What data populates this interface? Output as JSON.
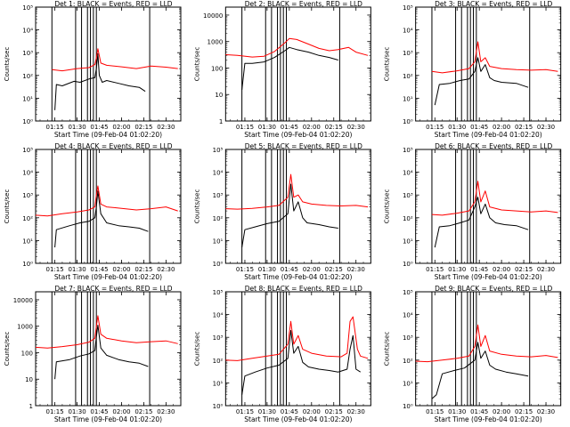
{
  "panel_defaults": {
    "xlabel": "Start Time (09-Feb-04 01:02:20)",
    "ylabel": "Counts/sec",
    "xticks": [
      "01:15",
      "01:30",
      "01:45",
      "02:00",
      "02:15",
      "02:30"
    ],
    "colors": {
      "events": "#000000",
      "lld": "#ff0000",
      "axes": "#000000"
    }
  },
  "chart_data": [
    {
      "type": "line",
      "title": "Det 1: BLACK = Events, RED = LLD",
      "xlabel": "Start Time (09-Feb-04 01:02:20)",
      "ylabel": "Counts/sec",
      "yscale": "log",
      "ylim": [
        1,
        100000
      ],
      "yticks": [
        "10⁰",
        "10¹",
        "10²",
        "10³",
        "10⁴",
        "10⁵"
      ],
      "xlim": [
        "01:02",
        "02:40"
      ],
      "xticks": [
        "01:15",
        "01:30",
        "01:45",
        "02:00",
        "02:15",
        "02:30"
      ],
      "vlines": [
        "01:13",
        "01:29",
        "01:33",
        "01:37",
        "01:39",
        "01:41",
        "01:43",
        "02:19"
      ],
      "series": [
        {
          "id": "events",
          "color": "#000000",
          "x": [
            "01:15",
            "01:16",
            "01:20",
            "01:28",
            "01:32",
            "01:38",
            "01:42",
            "01:43",
            "01:44",
            "01:45",
            "01:47",
            "01:50",
            "01:58",
            "02:05",
            "02:12",
            "02:16"
          ],
          "y": [
            3,
            40,
            35,
            55,
            50,
            70,
            80,
            200,
            900,
            100,
            50,
            60,
            45,
            35,
            30,
            20
          ]
        },
        {
          "id": "lld",
          "color": "#ff0000",
          "x": [
            "01:13",
            "01:20",
            "01:30",
            "01:38",
            "01:42",
            "01:43",
            "01:44",
            "01:46",
            "01:50",
            "02:00",
            "02:10",
            "02:20",
            "02:30",
            "02:38"
          ],
          "y": [
            180,
            160,
            200,
            220,
            300,
            600,
            1500,
            350,
            280,
            240,
            200,
            260,
            230,
            200
          ]
        }
      ]
    },
    {
      "type": "line",
      "title": "Det 2: BLACK = Events, RED = LLD",
      "xlabel": "Start Time (09-Feb-04 01:02:20)",
      "ylabel": "Counts/sec",
      "yscale": "log",
      "ylim": [
        1,
        20000
      ],
      "yticks": [
        "1",
        "10",
        "100",
        "1000",
        "10000"
      ],
      "xlim": [
        "01:02",
        "02:40"
      ],
      "xticks": [
        "01:15",
        "01:30",
        "01:45",
        "02:00",
        "02:15",
        "02:30"
      ],
      "vlines": [
        "01:13",
        "01:29",
        "01:33",
        "01:37",
        "01:39",
        "01:41",
        "01:43",
        "02:19"
      ],
      "series": [
        {
          "id": "events",
          "color": "#000000",
          "x": [
            "01:13",
            "01:15",
            "01:20",
            "01:28",
            "01:35",
            "01:42",
            "01:45",
            "01:50",
            "01:58",
            "02:05",
            "02:12",
            "02:18"
          ],
          "y": [
            15,
            150,
            150,
            170,
            250,
            450,
            600,
            500,
            400,
            300,
            250,
            200
          ]
        },
        {
          "id": "lld",
          "color": "#ff0000",
          "x": [
            "01:02",
            "01:10",
            "01:20",
            "01:28",
            "01:35",
            "01:42",
            "01:45",
            "01:50",
            "01:58",
            "02:05",
            "02:12",
            "02:18",
            "02:25",
            "02:30",
            "02:38"
          ],
          "y": [
            320,
            300,
            260,
            280,
            420,
            900,
            1300,
            1200,
            800,
            550,
            450,
            500,
            600,
            400,
            300
          ]
        }
      ]
    },
    {
      "type": "line",
      "title": "Det 3: BLACK = Events, RED = LLD",
      "xlabel": "Start Time (09-Feb-04 01:02:20)",
      "ylabel": "Counts/sec",
      "yscale": "log",
      "ylim": [
        1,
        100000
      ],
      "yticks": [
        "10⁰",
        "10¹",
        "10²",
        "10³",
        "10⁴",
        "10⁵"
      ],
      "xlim": [
        "01:02",
        "02:40"
      ],
      "xticks": [
        "01:15",
        "01:30",
        "01:45",
        "02:00",
        "02:15",
        "02:30"
      ],
      "vlines": [
        "01:13",
        "01:29",
        "01:33",
        "01:37",
        "01:39",
        "01:41",
        "01:43",
        "02:19"
      ],
      "series": [
        {
          "id": "events",
          "color": "#000000",
          "x": [
            "01:15",
            "01:18",
            "01:25",
            "01:32",
            "01:38",
            "01:42",
            "01:44",
            "01:46",
            "01:49",
            "01:52",
            "01:55",
            "02:00",
            "02:10",
            "02:18"
          ],
          "y": [
            5,
            40,
            45,
            60,
            70,
            150,
            600,
            150,
            300,
            80,
            60,
            50,
            45,
            30
          ]
        },
        {
          "id": "lld",
          "color": "#ff0000",
          "x": [
            "01:13",
            "01:20",
            "01:30",
            "01:38",
            "01:42",
            "01:44",
            "01:46",
            "01:49",
            "01:52",
            "02:00",
            "02:10",
            "02:20",
            "02:30",
            "02:38"
          ],
          "y": [
            150,
            130,
            160,
            200,
            400,
            3000,
            400,
            600,
            250,
            200,
            180,
            170,
            180,
            150
          ]
        }
      ]
    },
    {
      "type": "line",
      "title": "Det 4: BLACK = Events, RED = LLD",
      "xlabel": "Start Time (09-Feb-04 01:02:20)",
      "ylabel": "Counts/sec",
      "yscale": "log",
      "ylim": [
        1,
        100000
      ],
      "yticks": [
        "10⁰",
        "10¹",
        "10²",
        "10³",
        "10⁴",
        "10⁵"
      ],
      "xlim": [
        "01:02",
        "02:40"
      ],
      "xticks": [
        "01:15",
        "01:30",
        "01:45",
        "02:00",
        "02:15",
        "02:30"
      ],
      "vlines": [
        "01:13",
        "01:29",
        "01:33",
        "01:37",
        "01:39",
        "01:41",
        "01:43",
        "02:19"
      ],
      "series": [
        {
          "id": "events",
          "color": "#000000",
          "x": [
            "01:15",
            "01:16",
            "01:25",
            "01:32",
            "01:38",
            "01:42",
            "01:43",
            "01:44",
            "01:46",
            "01:50",
            "01:58",
            "02:05",
            "02:12",
            "02:18"
          ],
          "y": [
            5,
            30,
            45,
            60,
            70,
            100,
            300,
            1500,
            150,
            60,
            45,
            40,
            35,
            25
          ]
        },
        {
          "id": "lld",
          "color": "#ff0000",
          "x": [
            "01:02",
            "01:10",
            "01:20",
            "01:30",
            "01:38",
            "01:42",
            "01:43",
            "01:44",
            "01:46",
            "01:50",
            "02:00",
            "02:10",
            "02:20",
            "02:30",
            "02:38"
          ],
          "y": [
            130,
            120,
            150,
            180,
            220,
            300,
            1000,
            2500,
            400,
            300,
            260,
            220,
            250,
            300,
            200
          ]
        }
      ]
    },
    {
      "type": "line",
      "title": "Det 5: BLACK = Events, RED = LLD",
      "xlabel": "Start Time (09-Feb-04 01:02:20)",
      "ylabel": "Counts/sec",
      "yscale": "log",
      "ylim": [
        1,
        100000
      ],
      "yticks": [
        "10⁰",
        "10¹",
        "10²",
        "10³",
        "10⁴",
        "10⁵"
      ],
      "xlim": [
        "01:02",
        "02:40"
      ],
      "xticks": [
        "01:15",
        "01:30",
        "01:45",
        "02:00",
        "02:15",
        "02:30"
      ],
      "vlines": [
        "01:13",
        "01:29",
        "01:33",
        "01:37",
        "01:39",
        "01:41",
        "01:43",
        "02:19"
      ],
      "series": [
        {
          "id": "events",
          "color": "#000000",
          "x": [
            "01:13",
            "01:15",
            "01:22",
            "01:30",
            "01:38",
            "01:44",
            "01:46",
            "01:48",
            "01:51",
            "01:54",
            "01:57",
            "02:05",
            "02:12",
            "02:18"
          ],
          "y": [
            5,
            30,
            40,
            55,
            70,
            150,
            3000,
            200,
            500,
            100,
            60,
            50,
            40,
            35
          ]
        },
        {
          "id": "lld",
          "color": "#ff0000",
          "x": [
            "01:02",
            "01:10",
            "01:20",
            "01:30",
            "01:38",
            "01:44",
            "01:46",
            "01:48",
            "01:51",
            "01:54",
            "02:00",
            "02:10",
            "02:20",
            "02:30",
            "02:38"
          ],
          "y": [
            250,
            240,
            260,
            300,
            350,
            800,
            8000,
            800,
            1000,
            500,
            400,
            350,
            330,
            350,
            300
          ]
        }
      ]
    },
    {
      "type": "line",
      "title": "Det 6: BLACK = Events, RED = LLD",
      "xlabel": "Start Time (09-Feb-04 01:02:20)",
      "ylabel": "Counts/sec",
      "yscale": "log",
      "ylim": [
        1,
        100000
      ],
      "yticks": [
        "10⁰",
        "10¹",
        "10²",
        "10³",
        "10⁴",
        "10⁵"
      ],
      "xlim": [
        "01:02",
        "02:40"
      ],
      "xticks": [
        "01:15",
        "01:30",
        "01:45",
        "02:00",
        "02:15",
        "02:30"
      ],
      "vlines": [
        "01:13",
        "01:29",
        "01:33",
        "01:37",
        "01:39",
        "01:41",
        "01:43",
        "02:19"
      ],
      "series": [
        {
          "id": "events",
          "color": "#000000",
          "x": [
            "01:15",
            "01:18",
            "01:25",
            "01:32",
            "01:38",
            "01:42",
            "01:44",
            "01:46",
            "01:49",
            "01:52",
            "01:56",
            "02:02",
            "02:10",
            "02:18"
          ],
          "y": [
            5,
            40,
            45,
            60,
            80,
            300,
            800,
            150,
            400,
            100,
            60,
            50,
            45,
            30
          ]
        },
        {
          "id": "lld",
          "color": "#ff0000",
          "x": [
            "01:13",
            "01:20",
            "01:30",
            "01:38",
            "01:42",
            "01:44",
            "01:46",
            "01:49",
            "01:52",
            "02:00",
            "02:10",
            "02:20",
            "02:30",
            "02:38"
          ],
          "y": [
            140,
            130,
            160,
            200,
            500,
            4000,
            500,
            1500,
            300,
            220,
            200,
            180,
            200,
            170
          ]
        }
      ]
    },
    {
      "type": "line",
      "title": "Det 7: BLACK = Events, RED = LLD",
      "xlabel": "Start Time (09-Feb-04 01:02:20)",
      "ylabel": "Counts/sec",
      "yscale": "log",
      "ylim": [
        1,
        20000
      ],
      "yticks": [
        "1",
        "10",
        "100",
        "1000",
        "10000"
      ],
      "xlim": [
        "01:02",
        "02:40"
      ],
      "xticks": [
        "01:15",
        "01:30",
        "01:45",
        "02:00",
        "02:15",
        "02:30"
      ],
      "vlines": [
        "01:13",
        "01:29",
        "01:33",
        "01:37",
        "01:39",
        "01:41",
        "01:43",
        "02:19"
      ],
      "series": [
        {
          "id": "events",
          "color": "#000000",
          "x": [
            "01:15",
            "01:16",
            "01:25",
            "01:32",
            "01:38",
            "01:42",
            "01:43",
            "01:44",
            "01:46",
            "01:50",
            "01:58",
            "02:05",
            "02:12",
            "02:18"
          ],
          "y": [
            10,
            45,
            55,
            75,
            90,
            120,
            400,
            1100,
            150,
            80,
            55,
            45,
            40,
            30
          ]
        },
        {
          "id": "lld",
          "color": "#ff0000",
          "x": [
            "01:02",
            "01:10",
            "01:20",
            "01:30",
            "01:38",
            "01:42",
            "01:43",
            "01:44",
            "01:46",
            "01:50",
            "02:00",
            "02:10",
            "02:20",
            "02:30",
            "02:38"
          ],
          "y": [
            160,
            150,
            170,
            200,
            250,
            350,
            1000,
            2500,
            500,
            350,
            280,
            240,
            260,
            280,
            220
          ]
        }
      ]
    },
    {
      "type": "line",
      "title": "Det 8: BLACK = Events, RED = LLD",
      "xlabel": "Start Time (09-Feb-04 01:02:20)",
      "ylabel": "Counts/sec",
      "yscale": "log",
      "ylim": [
        1,
        100000
      ],
      "yticks": [
        "10⁰",
        "10¹",
        "10²",
        "10³",
        "10⁴",
        "10⁵"
      ],
      "xlim": [
        "01:02",
        "02:40"
      ],
      "xticks": [
        "01:15",
        "01:30",
        "01:45",
        "02:00",
        "02:15",
        "02:30"
      ],
      "vlines": [
        "01:13",
        "01:29",
        "01:33",
        "01:37",
        "01:39",
        "01:41",
        "01:43",
        "02:19"
      ],
      "series": [
        {
          "id": "events",
          "color": "#000000",
          "x": [
            "01:13",
            "01:15",
            "01:22",
            "01:30",
            "01:38",
            "01:44",
            "01:46",
            "01:48",
            "01:51",
            "01:54",
            "01:58",
            "02:05",
            "02:12",
            "02:18",
            "02:24",
            "02:26",
            "02:28",
            "02:30",
            "02:33"
          ],
          "y": [
            3,
            20,
            30,
            45,
            60,
            120,
            2000,
            200,
            400,
            80,
            50,
            40,
            35,
            30,
            40,
            300,
            1200,
            40,
            30
          ]
        },
        {
          "id": "lld",
          "color": "#ff0000",
          "x": [
            "01:02",
            "01:10",
            "01:20",
            "01:30",
            "01:38",
            "01:44",
            "01:46",
            "01:48",
            "01:51",
            "01:54",
            "02:00",
            "02:10",
            "02:20",
            "02:24",
            "02:26",
            "02:28",
            "02:31",
            "02:33",
            "02:38"
          ],
          "y": [
            100,
            95,
            120,
            150,
            180,
            500,
            5000,
            500,
            1200,
            300,
            200,
            150,
            140,
            200,
            5000,
            8000,
            300,
            150,
            120
          ]
        }
      ]
    },
    {
      "type": "line",
      "title": "Det 9: BLACK = Events, RED = LLD",
      "xlabel": "Start Time (09-Feb-04 01:02:20)",
      "ylabel": "Counts/sec",
      "yscale": "log",
      "ylim": [
        1,
        100000
      ],
      "yticks": [
        "10⁰",
        "10¹",
        "10²",
        "10³",
        "10⁴",
        "10⁵"
      ],
      "xlim": [
        "01:02",
        "02:40"
      ],
      "xticks": [
        "01:15",
        "01:30",
        "01:45",
        "02:00",
        "02:15",
        "02:30"
      ],
      "vlines": [
        "01:13",
        "01:29",
        "01:33",
        "01:37",
        "01:39",
        "01:41",
        "01:43",
        "02:19"
      ],
      "series": [
        {
          "id": "events",
          "color": "#000000",
          "x": [
            "01:13",
            "01:16",
            "01:20",
            "01:28",
            "01:35",
            "01:42",
            "01:44",
            "01:46",
            "01:49",
            "01:52",
            "01:56",
            "02:03",
            "02:10",
            "02:18"
          ],
          "y": [
            2,
            3,
            25,
            35,
            45,
            100,
            600,
            120,
            250,
            60,
            40,
            30,
            25,
            20
          ]
        },
        {
          "id": "lld",
          "color": "#ff0000",
          "x": [
            "01:02",
            "01:10",
            "01:20",
            "01:30",
            "01:38",
            "01:42",
            "01:44",
            "01:46",
            "01:49",
            "01:52",
            "02:00",
            "02:10",
            "02:20",
            "02:30",
            "02:38"
          ],
          "y": [
            90,
            85,
            100,
            120,
            150,
            400,
            3500,
            400,
            1200,
            250,
            180,
            150,
            140,
            160,
            130
          ]
        }
      ]
    }
  ]
}
